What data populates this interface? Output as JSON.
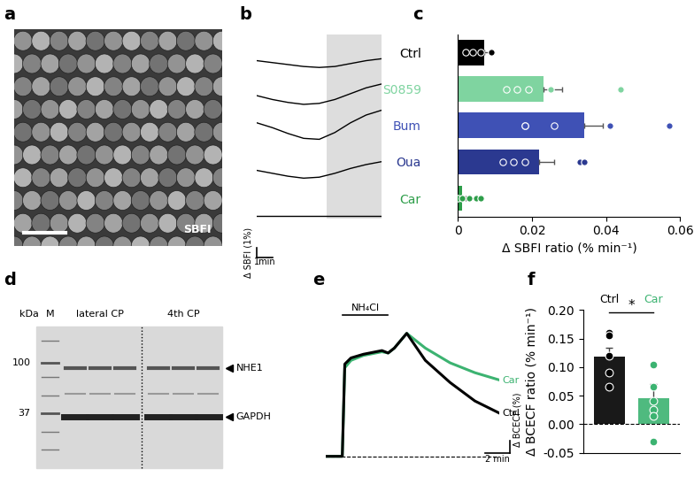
{
  "image": {
    "panel": "a",
    "label": "SBFI"
  },
  "blot": {
    "panel": "d",
    "unit": "kDa",
    "marker_lane": "M",
    "groups": [
      "lateral CP",
      "4th CP"
    ],
    "markers": [
      100,
      37
    ],
    "bands": [
      "NHE1",
      "GAPDH"
    ]
  },
  "chart_data": [
    {
      "panel": "b",
      "type": "line",
      "x": [
        0,
        1,
        2,
        3,
        4,
        5,
        6,
        7,
        8
      ],
      "series": [
        {
          "values": [
            0.8,
            0.6,
            0.4,
            0.2,
            0.1,
            0.2,
            0.5,
            0.8,
            1.0
          ]
        },
        {
          "values": [
            1.0,
            0.6,
            0.3,
            0.1,
            0.2,
            0.6,
            1.2,
            1.8,
            2.2
          ]
        },
        {
          "values": [
            2.0,
            1.5,
            0.9,
            0.4,
            0.3,
            1.0,
            2.0,
            2.8,
            3.3
          ]
        },
        {
          "values": [
            0.9,
            0.6,
            0.3,
            0.1,
            0.2,
            0.6,
            1.1,
            1.5,
            1.8
          ]
        },
        {
          "values": [
            0,
            0,
            0,
            0,
            0,
            0,
            0,
            0,
            0
          ]
        }
      ],
      "color": "#000000",
      "xlim": [
        0,
        8
      ],
      "ylim": [
        -0.3,
        3.5
      ],
      "tick_labels": false,
      "shaded_x": [
        4.5,
        8
      ],
      "scale_bar": {
        "x": 1,
        "y": 1,
        "x_label": "1min",
        "y_label": "Δ SBFI (1%)"
      }
    },
    {
      "panel": "c",
      "type": "bar",
      "orientation": "horizontal",
      "categories": [
        "Ctrl",
        "S0859",
        "Bum",
        "Oua",
        "Car"
      ],
      "values": [
        0.007,
        0.023,
        0.034,
        0.022,
        0.001
      ],
      "errors": [
        0.0015,
        0.005,
        0.005,
        0.004,
        0.001
      ],
      "points": [
        [
          0.002,
          0.004,
          0.006,
          0.009,
          0.009
        ],
        [
          0.013,
          0.016,
          0.019,
          0.025,
          0.044
        ],
        [
          0.018,
          0.018,
          0.026,
          0.041,
          0.057
        ],
        [
          0.012,
          0.015,
          0.018,
          0.033,
          0.034
        ],
        [
          0.0,
          0.001,
          0.003,
          0.005,
          0.006
        ]
      ],
      "colors": [
        "#000000",
        "#7fd4a0",
        "#3f51b5",
        "#2b3990",
        "#2e9e4a"
      ],
      "xlim": [
        0,
        0.06
      ],
      "xticks": [
        0,
        0.02,
        0.04,
        0.06
      ],
      "x_label": "Δ SBFI ratio (% min⁻¹)"
    },
    {
      "panel": "e",
      "type": "line",
      "x": [
        0,
        1.3,
        1.5,
        2,
        3,
        4.5,
        5,
        5.5,
        6.5,
        8,
        10,
        12,
        14
      ],
      "series": [
        {
          "name": "Car",
          "color": "#3cb371",
          "values": [
            0,
            0,
            72,
            78,
            82,
            85,
            84,
            88,
            100,
            88,
            76,
            68,
            62
          ]
        },
        {
          "name": "Ctrl",
          "color": "#000000",
          "values": [
            0,
            0,
            75,
            80,
            83,
            86,
            84,
            88,
            100,
            78,
            60,
            45,
            35
          ]
        }
      ],
      "xlim": [
        0,
        14
      ],
      "ylim": [
        -5,
        115
      ],
      "tick_labels": false,
      "baseline": 0,
      "annotation_bar": {
        "label": "NH₄Cl",
        "x": [
          1.3,
          5.0
        ]
      },
      "scale_bar": {
        "x": 2,
        "y": 10,
        "x_label": "2 min",
        "y_label": "Δ BCECF (%)"
      }
    },
    {
      "panel": "f",
      "type": "bar",
      "categories": [
        "Ctrl",
        "Car"
      ],
      "values": [
        0.118,
        0.045
      ],
      "errors": [
        0.016,
        0.025
      ],
      "points": [
        [
          0.16,
          0.155,
          0.12,
          0.09,
          0.065
        ],
        [
          0.105,
          0.065,
          0.04,
          0.025,
          0.015,
          -0.03
        ]
      ],
      "colors": [
        "#000000",
        "#3cb371"
      ],
      "ylim": [
        -0.05,
        0.2
      ],
      "yticks": [
        -0.05,
        {
          "value": 0.0,
          "label": "0.00"
        },
        0.05,
        {
          "value": 0.1,
          "label": "0.10"
        },
        0.15,
        {
          "value": 0.2,
          "label": "0.20"
        }
      ],
      "y_label": "Δ BCECF ratio (% min⁻¹)",
      "annotation": "*",
      "tick_labels": "y"
    }
  ]
}
